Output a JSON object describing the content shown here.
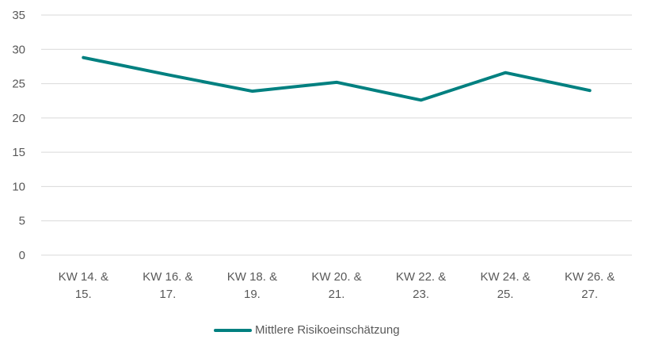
{
  "chart_data": {
    "type": "line",
    "categories": [
      [
        "KW 14. &",
        "15."
      ],
      [
        "KW 16. &",
        "17."
      ],
      [
        "KW 18. &",
        "19."
      ],
      [
        "KW 20. &",
        "21."
      ],
      [
        "KW 22. &",
        "23."
      ],
      [
        "KW 24. &",
        "25."
      ],
      [
        "KW 26. &",
        "27."
      ]
    ],
    "series": [
      {
        "name": "Mittlere Risikoeinschätzung",
        "values": [
          28.8,
          26.3,
          23.9,
          25.2,
          22.6,
          26.6,
          24.0
        ],
        "color": "#008080"
      }
    ],
    "yticks": [
      "0",
      "5",
      "10",
      "15",
      "20",
      "25",
      "30",
      "35"
    ],
    "ylim": [
      0,
      35
    ],
    "grid": true,
    "legend_position": "bottom"
  }
}
